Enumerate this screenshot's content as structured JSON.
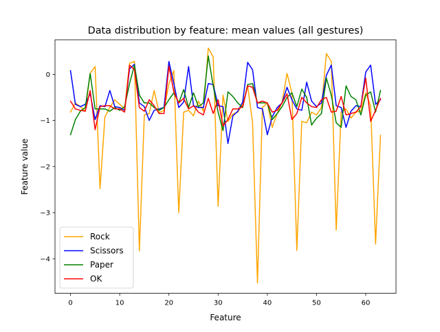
{
  "chart_data": {
    "type": "line",
    "title": "Data distribution by feature: mean values (all gestures)",
    "xlabel": "Feature",
    "ylabel": "Feature value",
    "xlim": [
      -3.15,
      66.15
    ],
    "ylim": [
      -4.75,
      0.75
    ],
    "xticks": [
      0,
      10,
      20,
      30,
      40,
      50,
      60
    ],
    "yticks": [
      0,
      -1,
      -2,
      -3,
      -4
    ],
    "ytick_labels": [
      "0",
      "−1",
      "−2",
      "−3",
      "−4"
    ],
    "legend_position": "lower-left",
    "grid": false,
    "x": [
      0,
      1,
      2,
      3,
      4,
      5,
      6,
      7,
      8,
      9,
      10,
      11,
      12,
      13,
      14,
      15,
      16,
      17,
      18,
      19,
      20,
      21,
      22,
      23,
      24,
      25,
      26,
      27,
      28,
      29,
      30,
      31,
      32,
      33,
      34,
      35,
      36,
      37,
      38,
      39,
      40,
      41,
      42,
      43,
      44,
      45,
      46,
      47,
      48,
      49,
      50,
      51,
      52,
      53,
      54,
      55,
      56,
      57,
      58,
      59,
      60,
      61,
      62,
      63
    ],
    "series": [
      {
        "name": "Rock",
        "color": "#ffa500",
        "values": [
          -0.82,
          -0.62,
          -0.7,
          -0.8,
          0.02,
          0.17,
          -2.48,
          -0.92,
          -0.72,
          -0.55,
          -0.65,
          -0.75,
          0.24,
          0.28,
          -3.83,
          -0.88,
          -0.85,
          -0.35,
          -0.83,
          -0.78,
          -0.2,
          0.08,
          -3.0,
          -0.82,
          -0.78,
          -0.9,
          -0.58,
          -0.8,
          0.57,
          0.38,
          -2.86,
          -0.45,
          -1.02,
          -0.86,
          -0.82,
          -0.65,
          -0.25,
          -1.05,
          -4.53,
          -0.72,
          -0.62,
          -1.15,
          -0.85,
          -0.6,
          0.02,
          -0.4,
          -3.82,
          -1.02,
          -1.05,
          -0.82,
          -0.88,
          -0.72,
          0.45,
          0.28,
          -3.38,
          -0.82,
          -0.75,
          -0.95,
          -0.82,
          -0.8,
          -0.4,
          -0.68,
          -3.68,
          -1.32
        ]
      },
      {
        "name": "Scissors",
        "color": "#0000ff",
        "values": [
          0.08,
          -0.65,
          -0.7,
          -0.65,
          -0.42,
          -0.98,
          -0.68,
          -0.7,
          -0.35,
          -0.7,
          -0.72,
          -0.78,
          0.12,
          0.22,
          -0.62,
          -0.7,
          -1.0,
          -0.78,
          -0.75,
          -0.72,
          0.28,
          -0.2,
          -0.72,
          -0.6,
          0.17,
          -0.68,
          -0.72,
          -0.72,
          -0.2,
          -0.22,
          -0.68,
          -0.7,
          -1.5,
          -0.9,
          -0.8,
          -0.6,
          0.26,
          0.1,
          -0.72,
          -0.75,
          -1.31,
          -0.92,
          -0.72,
          -0.62,
          -0.28,
          -0.55,
          -0.75,
          -0.78,
          -0.17,
          -0.58,
          -0.7,
          -0.62,
          -0.02,
          0.2,
          -0.68,
          -0.72,
          -1.15,
          -0.8,
          -0.68,
          -0.7,
          0.05,
          0.2,
          -0.65,
          -0.55
        ]
      },
      {
        "name": "Paper",
        "color": "#008000",
        "values": [
          -1.31,
          -0.98,
          -0.8,
          -0.72,
          0.02,
          -0.75,
          -0.75,
          -0.75,
          -0.8,
          -0.72,
          -0.78,
          -0.7,
          -0.2,
          0.2,
          -0.45,
          -0.62,
          -0.62,
          -0.72,
          -0.78,
          -0.72,
          -0.55,
          -0.4,
          -0.62,
          -0.33,
          -0.72,
          -0.4,
          -0.7,
          -0.62,
          0.4,
          -0.25,
          -0.82,
          -1.22,
          -0.38,
          -0.48,
          -0.62,
          -0.72,
          -0.22,
          -0.2,
          -0.62,
          -0.62,
          -0.62,
          -0.98,
          -0.85,
          -0.7,
          -0.5,
          -0.4,
          -0.7,
          -0.32,
          -0.5,
          -1.1,
          -0.95,
          -0.85,
          -0.08,
          -0.45,
          -1.05,
          -1.15,
          -0.25,
          -0.48,
          -0.55,
          -0.88,
          -0.45,
          -0.38,
          -0.82,
          -0.35
        ]
      },
      {
        "name": "OK",
        "color": "#ff0000",
        "values": [
          -0.58,
          -0.75,
          -0.78,
          -0.8,
          -0.35,
          -1.2,
          -0.7,
          -0.68,
          -0.68,
          -0.75,
          -0.75,
          -0.82,
          0.2,
          0.1,
          -0.72,
          -0.8,
          -0.55,
          -0.68,
          -0.85,
          -0.85,
          0.18,
          -0.38,
          -0.62,
          -0.52,
          -0.75,
          -0.68,
          -0.82,
          -0.88,
          -0.52,
          -0.85,
          -0.55,
          -1.12,
          -0.98,
          -0.75,
          -0.75,
          -0.7,
          -0.25,
          -0.28,
          -0.62,
          -0.58,
          -0.62,
          -0.82,
          -0.78,
          -0.62,
          -0.42,
          -0.98,
          -0.85,
          -0.5,
          -0.62,
          -0.7,
          -0.72,
          -0.55,
          -0.5,
          -0.82,
          -0.8,
          -0.48,
          -0.88,
          -0.85,
          -0.82,
          -0.7,
          -0.08,
          -1.02,
          -0.78,
          -0.52
        ]
      }
    ]
  }
}
